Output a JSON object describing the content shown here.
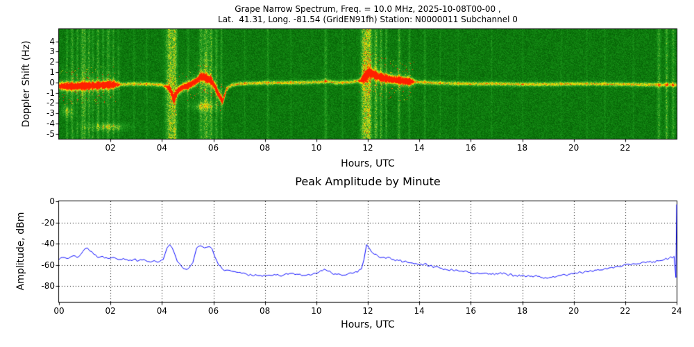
{
  "chart_data": [
    {
      "type": "heatmap",
      "title": "Grape Narrow Spectrum, Freq. = 10.0 MHz, 2025-10-08T00-00 ,",
      "subtitle": "Lat.  41.31, Long. -81.54 (GridEN91fh) Station: N0000011 Subchannel 0",
      "xlabel": "Hours, UTC",
      "ylabel": "Doppler Shift (Hz)",
      "xlim": [
        0,
        24
      ],
      "ylim": [
        -5.5,
        5.2
      ],
      "xticks": {
        "values": [
          2,
          4,
          6,
          8,
          10,
          12,
          14,
          16,
          18,
          20,
          22
        ],
        "labels": [
          "02",
          "04",
          "06",
          "08",
          "10",
          "12",
          "14",
          "16",
          "18",
          "20",
          "22"
        ]
      },
      "yticks": {
        "values": [
          4,
          3,
          2,
          1,
          0,
          -1,
          -2,
          -3,
          -4,
          -5
        ],
        "labels": [
          "4",
          "3",
          "2",
          "1",
          "0",
          "-1",
          "-2",
          "-3",
          "-4",
          "-5"
        ]
      },
      "colormap": [
        [
          0.0,
          "#004000"
        ],
        [
          0.3,
          "#0c7a0c"
        ],
        [
          0.5,
          "#1f9a1f"
        ],
        [
          0.62,
          "#5ab432"
        ],
        [
          0.72,
          "#a0d028"
        ],
        [
          0.8,
          "#e8ee00"
        ],
        [
          0.88,
          "#ffb000"
        ],
        [
          1.0,
          "#ff2000"
        ]
      ],
      "background_level": 0.3,
      "noise_level": 0.26,
      "carrier_trace": [
        [
          0,
          -0.3
        ],
        [
          0.5,
          -0.35
        ],
        [
          1,
          -0.3
        ],
        [
          1.5,
          -0.25
        ],
        [
          2,
          -0.2
        ],
        [
          2.5,
          -0.15
        ],
        [
          3,
          -0.1
        ],
        [
          3.5,
          -0.15
        ],
        [
          4,
          -0.2
        ],
        [
          4.3,
          -0.6
        ],
        [
          4.45,
          -1.6
        ],
        [
          4.6,
          -0.8
        ],
        [
          4.8,
          -0.4
        ],
        [
          5,
          -0.3
        ],
        [
          5.3,
          0.1
        ],
        [
          5.5,
          0.6
        ],
        [
          5.7,
          0.5
        ],
        [
          5.9,
          0.2
        ],
        [
          6.05,
          -0.4
        ],
        [
          6.2,
          -1.2
        ],
        [
          6.35,
          -1.8
        ],
        [
          6.5,
          -0.6
        ],
        [
          6.7,
          -0.2
        ],
        [
          7,
          -0.1
        ],
        [
          7.5,
          -0.05
        ],
        [
          8,
          0
        ],
        [
          9,
          0
        ],
        [
          10,
          0.05
        ],
        [
          10.4,
          0.15
        ],
        [
          10.8,
          0
        ],
        [
          11.3,
          0.05
        ],
        [
          11.7,
          0.2
        ],
        [
          11.9,
          0.6
        ],
        [
          12.05,
          1.0
        ],
        [
          12.2,
          0.85
        ],
        [
          12.4,
          0.6
        ],
        [
          12.7,
          0.4
        ],
        [
          13,
          0.3
        ],
        [
          13.5,
          0.15
        ],
        [
          14,
          0.05
        ],
        [
          15,
          -0.05
        ],
        [
          16,
          -0.1
        ],
        [
          17,
          -0.1
        ],
        [
          18,
          -0.15
        ],
        [
          19,
          -0.15
        ],
        [
          20,
          -0.1
        ],
        [
          21,
          -0.12
        ],
        [
          22,
          -0.15
        ],
        [
          23,
          -0.2
        ],
        [
          24,
          -0.2
        ]
      ],
      "hot_periods": [
        [
          -0.2,
          2.4,
          0.9,
          1.8
        ],
        [
          4.1,
          6.6,
          0.85,
          1.5
        ],
        [
          11.6,
          13.9,
          1.0,
          2.0
        ]
      ],
      "streaks": [
        [
          0.3,
          0.03,
          0.25
        ],
        [
          0.5,
          0.04,
          0.3
        ],
        [
          0.7,
          0.03,
          0.25
        ],
        [
          0.9,
          0.05,
          0.35
        ],
        [
          1.0,
          0.03,
          0.3
        ],
        [
          1.15,
          0.04,
          0.3
        ],
        [
          1.3,
          0.03,
          0.25
        ],
        [
          1.5,
          0.04,
          0.3
        ],
        [
          1.7,
          0.03,
          0.25
        ],
        [
          1.9,
          0.05,
          0.3
        ],
        [
          2.1,
          0.03,
          0.25
        ],
        [
          2.3,
          0.03,
          0.2
        ],
        [
          2.9,
          0.02,
          0.15
        ],
        [
          3.4,
          0.02,
          0.15
        ],
        [
          4.3,
          0.12,
          0.5
        ],
        [
          4.5,
          0.06,
          0.4
        ],
        [
          5.0,
          0.03,
          0.2
        ],
        [
          5.5,
          0.05,
          0.3
        ],
        [
          5.7,
          0.08,
          0.4
        ],
        [
          5.9,
          0.05,
          0.35
        ],
        [
          6.1,
          0.04,
          0.3
        ],
        [
          6.3,
          0.03,
          0.25
        ],
        [
          7.2,
          0.02,
          0.15
        ],
        [
          8.1,
          0.03,
          0.2
        ],
        [
          9.0,
          0.02,
          0.12
        ],
        [
          10.35,
          0.04,
          0.25
        ],
        [
          11.0,
          0.02,
          0.15
        ],
        [
          11.85,
          0.1,
          0.55
        ],
        [
          12.05,
          0.08,
          0.5
        ],
        [
          12.3,
          0.05,
          0.4
        ],
        [
          12.5,
          0.04,
          0.35
        ],
        [
          12.7,
          0.03,
          0.3
        ],
        [
          13.2,
          0.04,
          0.3
        ],
        [
          13.6,
          0.03,
          0.2
        ],
        [
          14.2,
          0.03,
          0.2
        ],
        [
          14.8,
          0.02,
          0.15
        ],
        [
          15.5,
          0.02,
          0.12
        ],
        [
          16.8,
          0.02,
          0.15
        ],
        [
          18.0,
          0.02,
          0.1
        ],
        [
          19.5,
          0.02,
          0.1
        ],
        [
          20.5,
          0.02,
          0.12
        ],
        [
          21.2,
          0.02,
          0.15
        ],
        [
          22.3,
          0.02,
          0.12
        ],
        [
          23.3,
          0.05,
          0.3
        ],
        [
          23.6,
          0.04,
          0.35
        ],
        [
          23.85,
          0.04,
          0.3
        ]
      ],
      "blobs": [
        [
          1.9,
          -4.3,
          0.5,
          0.25,
          0.35
        ],
        [
          0.3,
          -2.8,
          0.15,
          0.4,
          0.3
        ],
        [
          5.6,
          -2.3,
          0.3,
          0.3,
          0.35
        ]
      ]
    },
    {
      "type": "line",
      "title": "Peak Amplitude by Minute",
      "xlabel": "Hours, UTC",
      "ylabel": "Amplitude, dBm",
      "xlim": [
        0,
        24
      ],
      "ylim": [
        -95,
        0
      ],
      "xticks": {
        "values": [
          0,
          2,
          4,
          6,
          8,
          10,
          12,
          14,
          16,
          18,
          20,
          22,
          24
        ],
        "labels": [
          "00",
          "02",
          "04",
          "06",
          "08",
          "10",
          "12",
          "14",
          "16",
          "18",
          "20",
          "22",
          "24"
        ]
      },
      "yticks": {
        "values": [
          0,
          -20,
          -40,
          -60,
          -80
        ],
        "labels": [
          "0",
          "-20",
          "-40",
          "-60",
          "-80"
        ]
      },
      "line_color": "#0000ff",
      "grid": "dotted",
      "noise_db": 1.1,
      "points": [
        [
          0,
          -55
        ],
        [
          0.15,
          -53
        ],
        [
          0.3,
          -54
        ],
        [
          0.5,
          -52
        ],
        [
          0.7,
          -53
        ],
        [
          0.85,
          -50
        ],
        [
          1.0,
          -45
        ],
        [
          1.1,
          -44
        ],
        [
          1.2,
          -47
        ],
        [
          1.35,
          -50
        ],
        [
          1.5,
          -53
        ],
        [
          1.7,
          -52
        ],
        [
          1.9,
          -54
        ],
        [
          2.1,
          -53
        ],
        [
          2.3,
          -55
        ],
        [
          2.5,
          -54
        ],
        [
          2.7,
          -56
        ],
        [
          2.9,
          -55
        ],
        [
          3.1,
          -56
        ],
        [
          3.3,
          -55
        ],
        [
          3.5,
          -57
        ],
        [
          3.7,
          -56
        ],
        [
          3.9,
          -57
        ],
        [
          4.05,
          -55
        ],
        [
          4.2,
          -44
        ],
        [
          4.3,
          -41
        ],
        [
          4.4,
          -44
        ],
        [
          4.5,
          -50
        ],
        [
          4.6,
          -57
        ],
        [
          4.75,
          -61
        ],
        [
          4.9,
          -64
        ],
        [
          5.05,
          -63
        ],
        [
          5.2,
          -58
        ],
        [
          5.35,
          -44
        ],
        [
          5.5,
          -42
        ],
        [
          5.65,
          -44
        ],
        [
          5.8,
          -43
        ],
        [
          5.95,
          -45
        ],
        [
          6.05,
          -52
        ],
        [
          6.2,
          -60
        ],
        [
          6.35,
          -64
        ],
        [
          6.5,
          -65
        ],
        [
          6.7,
          -66
        ],
        [
          6.9,
          -67
        ],
        [
          7.1,
          -68
        ],
        [
          7.3,
          -69
        ],
        [
          7.5,
          -70
        ],
        [
          7.7,
          -70
        ],
        [
          7.9,
          -71
        ],
        [
          8.1,
          -70
        ],
        [
          8.3,
          -70
        ],
        [
          8.5,
          -69
        ],
        [
          8.7,
          -70
        ],
        [
          8.9,
          -69
        ],
        [
          9.1,
          -68
        ],
        [
          9.3,
          -69
        ],
        [
          9.5,
          -70
        ],
        [
          9.7,
          -69
        ],
        [
          9.9,
          -68
        ],
        [
          10.1,
          -67
        ],
        [
          10.3,
          -64
        ],
        [
          10.45,
          -66
        ],
        [
          10.6,
          -68
        ],
        [
          10.8,
          -69
        ],
        [
          11.0,
          -70
        ],
        [
          11.2,
          -69
        ],
        [
          11.4,
          -68
        ],
        [
          11.6,
          -67
        ],
        [
          11.75,
          -64
        ],
        [
          11.85,
          -55
        ],
        [
          11.95,
          -41
        ],
        [
          12.05,
          -44
        ],
        [
          12.15,
          -48
        ],
        [
          12.25,
          -50
        ],
        [
          12.4,
          -52
        ],
        [
          12.55,
          -53
        ],
        [
          12.7,
          -54
        ],
        [
          12.85,
          -53
        ],
        [
          13.0,
          -55
        ],
        [
          13.2,
          -56
        ],
        [
          13.4,
          -57
        ],
        [
          13.6,
          -58
        ],
        [
          13.8,
          -59
        ],
        [
          14.0,
          -60
        ],
        [
          14.2,
          -59
        ],
        [
          14.4,
          -61
        ],
        [
          14.6,
          -62
        ],
        [
          14.8,
          -63
        ],
        [
          15.0,
          -64
        ],
        [
          15.3,
          -65
        ],
        [
          15.6,
          -66
        ],
        [
          15.9,
          -67
        ],
        [
          16.2,
          -68
        ],
        [
          16.5,
          -68
        ],
        [
          16.8,
          -69
        ],
        [
          17.1,
          -68
        ],
        [
          17.4,
          -69
        ],
        [
          17.7,
          -70
        ],
        [
          18.0,
          -70
        ],
        [
          18.3,
          -71
        ],
        [
          18.6,
          -71
        ],
        [
          18.9,
          -72
        ],
        [
          19.2,
          -71
        ],
        [
          19.5,
          -70
        ],
        [
          19.8,
          -69
        ],
        [
          20.1,
          -68
        ],
        [
          20.4,
          -67
        ],
        [
          20.7,
          -66
        ],
        [
          21.0,
          -65
        ],
        [
          21.3,
          -64
        ],
        [
          21.6,
          -62
        ],
        [
          21.9,
          -61
        ],
        [
          22.2,
          -60
        ],
        [
          22.5,
          -59
        ],
        [
          22.8,
          -58
        ],
        [
          23.1,
          -57
        ],
        [
          23.4,
          -56
        ],
        [
          23.7,
          -54
        ],
        [
          23.9,
          -52
        ],
        [
          23.97,
          -72
        ],
        [
          24.0,
          -3
        ]
      ]
    }
  ]
}
